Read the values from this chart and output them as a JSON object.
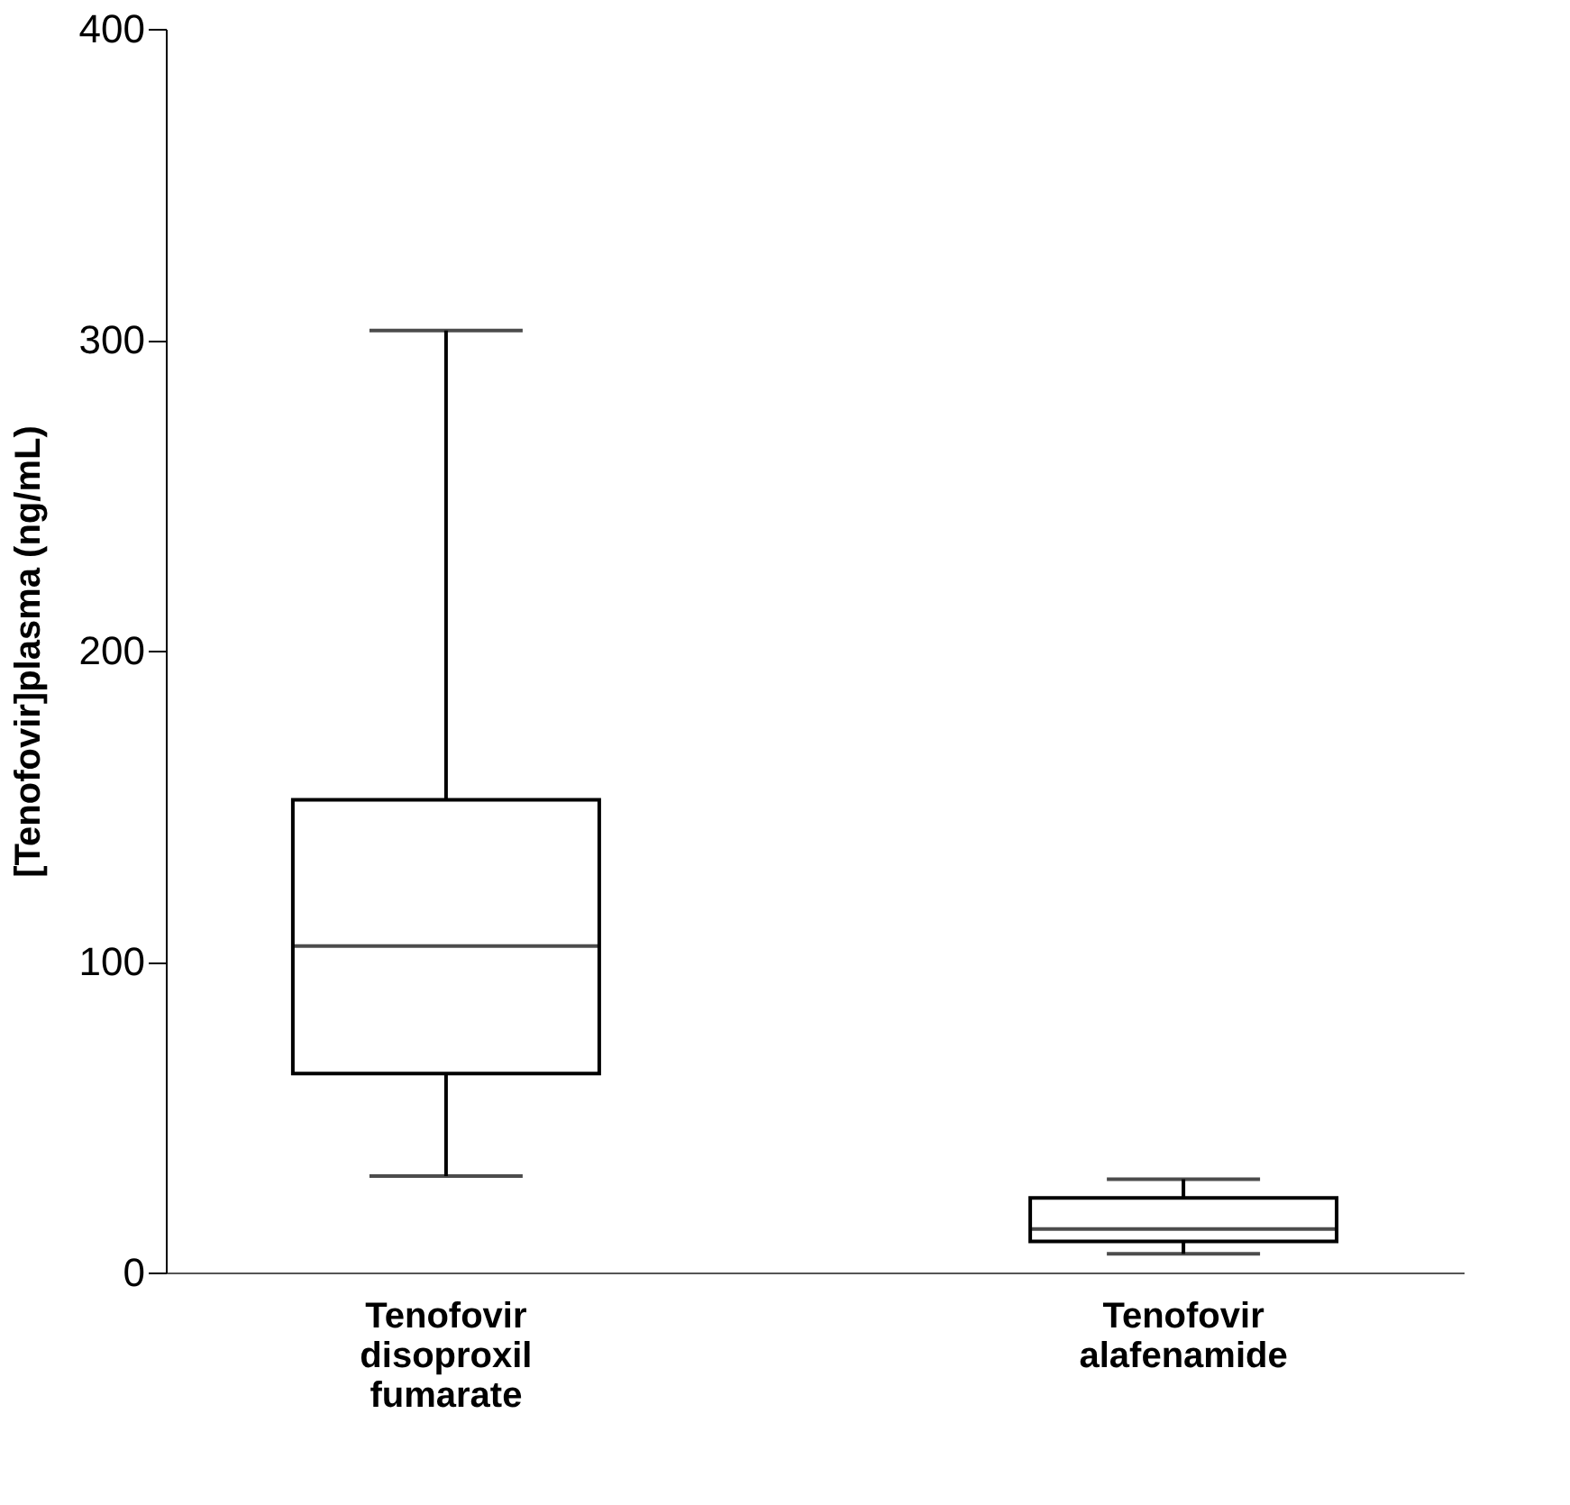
{
  "chart_data": {
    "type": "box",
    "ylabel": "[Tenofovir]plasma (ng/mL)",
    "categories": [
      "Tenofovir disoproxil fumarate",
      "Tenofovir alafenamide"
    ],
    "boxes": [
      {
        "low": 31,
        "q1": 64,
        "median": 105,
        "q3": 152,
        "high": 303
      },
      {
        "low": 6,
        "q1": 10,
        "median": 14,
        "q3": 24,
        "high": 30
      }
    ],
    "ylim": [
      0,
      400
    ],
    "yticks": [
      0,
      100,
      200,
      300,
      400
    ],
    "grid": false
  }
}
